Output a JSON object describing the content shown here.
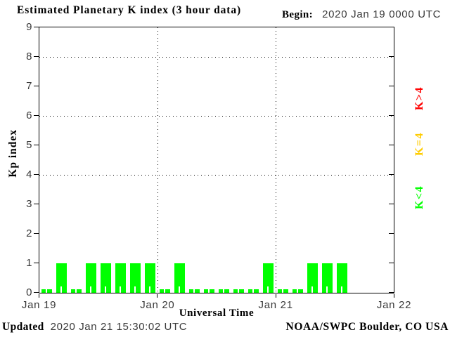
{
  "header": {
    "title": "Estimated Planetary K index (3 hour data)",
    "begin_label": "Begin:",
    "begin_value": "2020 Jan 19 0000 UTC"
  },
  "footer": {
    "updated_label": "Updated",
    "updated_value": "2020 Jan 21 15:30:02 UTC",
    "source": "NOAA/SWPC Boulder, CO USA"
  },
  "chart_data": {
    "type": "bar",
    "title": "Estimated Planetary K index (3 hour data)",
    "begin": "2020 Jan 19 0000 UTC",
    "xlabel": "Universal Time",
    "ylabel": "Kp index",
    "ylim": [
      0,
      9
    ],
    "y_ticks": [
      0,
      1,
      2,
      3,
      4,
      5,
      6,
      7,
      8,
      9
    ],
    "dotted_gridlines_at_kp": [
      4,
      6,
      8
    ],
    "x_tick_labels": [
      "Jan 19",
      "Jan 20",
      "Jan 21",
      "Jan 22"
    ],
    "interval_hours": 3,
    "slots_per_day": 8,
    "values": [
      0,
      1,
      0,
      1,
      1,
      1,
      1,
      1,
      0,
      1,
      0,
      0,
      0,
      0,
      0,
      1,
      0,
      0,
      1,
      1,
      1
    ],
    "values_by_day": {
      "Jan 19": [
        0,
        1,
        0,
        1,
        1,
        1,
        1,
        1
      ],
      "Jan 20": [
        0,
        1,
        0,
        0,
        0,
        0,
        0,
        1
      ],
      "Jan 21": [
        0,
        0,
        1,
        1,
        1
      ]
    },
    "legend": [
      {
        "label": "K>4",
        "color": "#ff0000"
      },
      {
        "label": "K=4",
        "color": "#ffcc00"
      },
      {
        "label": "K<4",
        "color": "#00ff00"
      }
    ],
    "bar_color_low": "#00ff00",
    "bar_color_mid": "#ffcc00",
    "bar_color_high": "#ff0000",
    "grid_on": true,
    "legend_position": "right"
  }
}
